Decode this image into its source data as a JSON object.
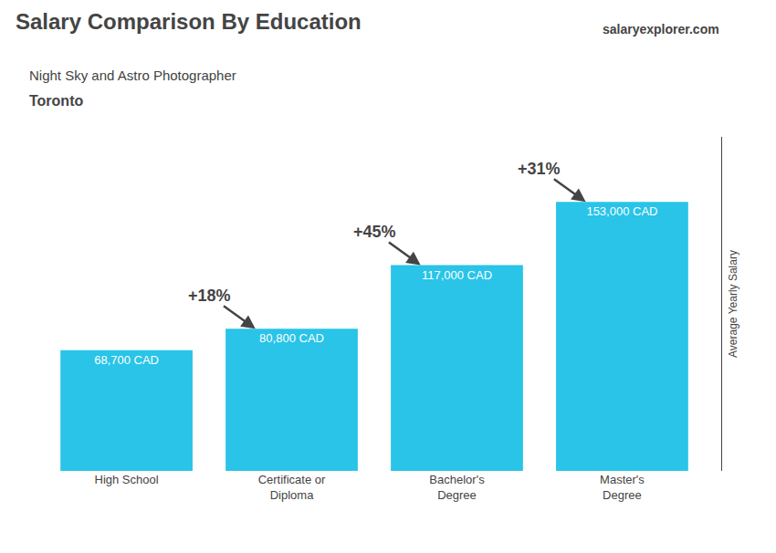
{
  "chart_data": {
    "type": "bar",
    "title": "Salary Comparison By Education",
    "subtitle": [
      "Night Sky and Astro Photographer",
      "Toronto"
    ],
    "watermark": "salaryexplorer.com",
    "ylabel": "Average Yearly Salary",
    "categories": [
      "High School",
      "Certificate or\nDiploma",
      "Bachelor's\nDegree",
      "Master's\nDegree"
    ],
    "values": [
      68700,
      80800,
      117000,
      153000
    ],
    "value_labels": [
      "68,700 CAD",
      "80,800 CAD",
      "117,000 CAD",
      "153,000 CAD"
    ],
    "annotations": [
      "+18%",
      "+45%",
      "+31%"
    ],
    "color": "#29C4E8",
    "ylim": [
      0,
      190000
    ],
    "grid": false,
    "tick_labels": "x"
  }
}
